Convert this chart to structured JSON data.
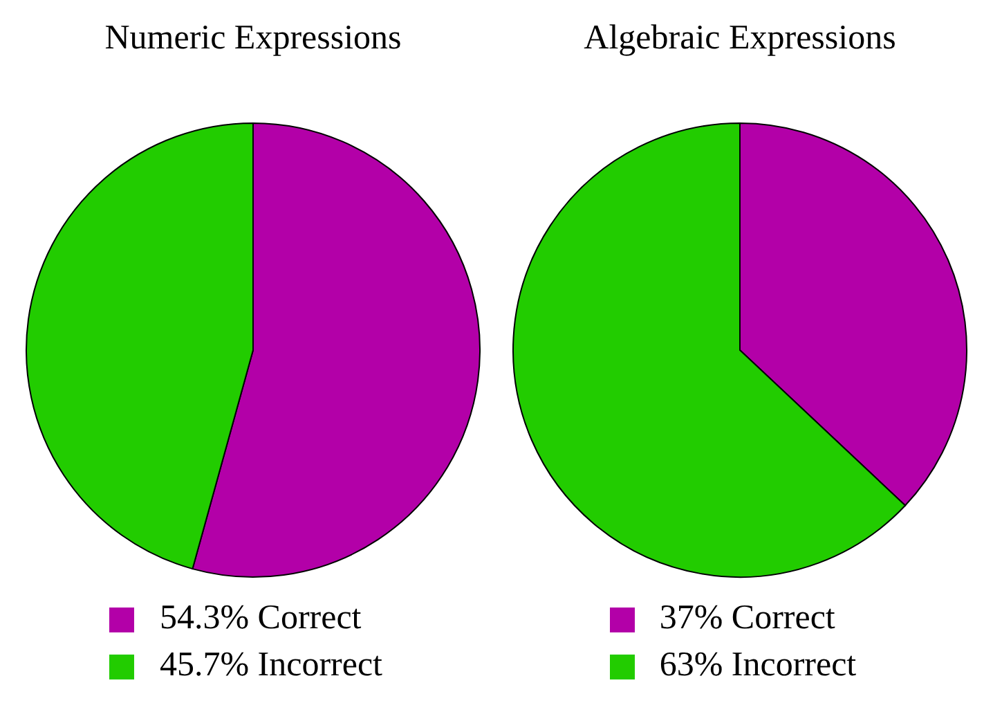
{
  "chart_data": [
    {
      "type": "pie",
      "title": "Numeric Expressions",
      "categories": [
        "54.3% Correct",
        "45.7% Incorrect"
      ],
      "values": [
        54.3,
        45.7
      ],
      "colors": [
        "#b300a8",
        "#22cc00"
      ],
      "legend": "bottom"
    },
    {
      "type": "pie",
      "title": "Algebraic Expressions",
      "categories": [
        "37% Correct",
        "63% Incorrect"
      ],
      "values": [
        37,
        63
      ],
      "colors": [
        "#b300a8",
        "#22cc00"
      ],
      "legend": "bottom"
    }
  ]
}
